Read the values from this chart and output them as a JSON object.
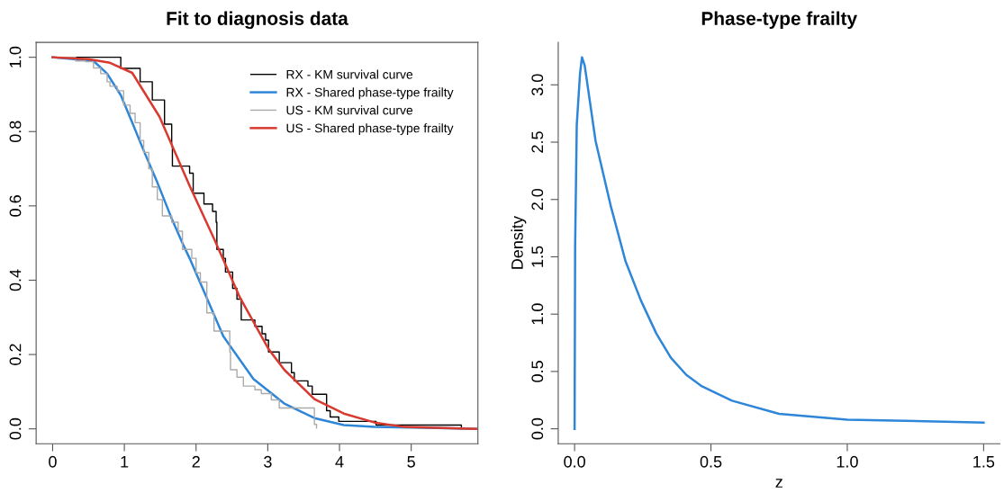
{
  "chart_data": [
    {
      "type": "line",
      "title": "Fit to diagnosis data",
      "xlim": [
        -0.23,
        5.93
      ],
      "ylim": [
        -0.04,
        1.04
      ],
      "xticks": [
        0,
        1,
        2,
        3,
        4,
        5
      ],
      "yticks": [
        {
          "value": 0,
          "label": "0.0"
        },
        {
          "value": 0.2,
          "label": "0.2"
        },
        {
          "value": 0.4,
          "label": "0.4"
        },
        {
          "value": 0.6,
          "label": "0.6"
        },
        {
          "value": 0.8,
          "label": "0.8"
        },
        {
          "value": 1,
          "label": "1.0"
        }
      ],
      "grid": false,
      "legend": "top right",
      "series": [
        {
          "name": "RX - KM survival curve",
          "type": "step",
          "color": "#000000",
          "x": [
            0,
            0.95,
            1.22,
            1.39,
            1.56,
            1.66,
            1.67,
            1.91,
            1.96,
            2.11,
            2.23,
            2.28,
            2.29,
            2.38,
            2.41,
            2.51,
            2.57,
            2.63,
            2.82,
            2.92,
            2.97,
            3.01,
            3.16,
            3.33,
            3.37,
            3.56,
            3.62,
            3.82,
            3.87,
            3.99,
            4.51,
            5.7
          ],
          "values": [
            1.0,
            0.97,
            0.934,
            0.885,
            0.82,
            0.76,
            0.707,
            0.688,
            0.634,
            0.605,
            0.585,
            0.556,
            0.483,
            0.459,
            0.422,
            0.378,
            0.349,
            0.293,
            0.276,
            0.256,
            0.239,
            0.207,
            0.178,
            0.151,
            0.129,
            0.115,
            0.093,
            0.049,
            0.032,
            0.02,
            0.01,
            0.0
          ]
        },
        {
          "name": "RX - Shared phase-type frailty",
          "type": "line",
          "color": "#2e86d8",
          "x": [
            0,
            0.57,
            0.76,
            0.95,
            1.11,
            1.28,
            1.46,
            1.66,
            1.81,
            1.91,
            2.38,
            2.8,
            3.23,
            3.65,
            4.06,
            4.49,
            5.91
          ],
          "values": [
            1.0,
            0.99,
            0.956,
            0.898,
            0.824,
            0.744,
            0.663,
            0.566,
            0.5,
            0.459,
            0.249,
            0.134,
            0.068,
            0.029,
            0.01,
            0.005,
            0.0
          ]
        },
        {
          "name": "US - KM survival curve",
          "type": "step",
          "color": "#aaaaaa",
          "x": [
            0,
            0.32,
            0.46,
            0.57,
            0.67,
            0.76,
            0.8,
            0.9,
            0.99,
            1.08,
            1.15,
            1.22,
            1.27,
            1.34,
            1.39,
            1.46,
            1.53,
            1.66,
            1.75,
            1.81,
            1.94,
            2.0,
            2.06,
            2.15,
            2.25,
            2.47,
            2.48,
            2.57,
            2.66,
            2.82,
            2.91,
            3.05,
            3.16,
            3.65,
            3.68
          ],
          "values": [
            1.0,
            0.99,
            0.988,
            0.971,
            0.956,
            0.934,
            0.922,
            0.91,
            0.871,
            0.849,
            0.824,
            0.776,
            0.744,
            0.7,
            0.651,
            0.617,
            0.573,
            0.556,
            0.532,
            0.483,
            0.459,
            0.42,
            0.395,
            0.312,
            0.263,
            0.207,
            0.159,
            0.139,
            0.115,
            0.105,
            0.095,
            0.078,
            0.056,
            0.012,
            0.002
          ]
        },
        {
          "name": "US - Shared phase-type frailty",
          "type": "line",
          "color": "#d93a2f",
          "x": [
            0,
            0.5,
            0.8,
            1.11,
            1.49,
            1.91,
            2.25,
            2.61,
            3.01,
            3.23,
            3.65,
            4.06,
            4.49,
            4.91,
            5.91
          ],
          "values": [
            1.0,
            0.995,
            0.985,
            0.958,
            0.84,
            0.654,
            0.512,
            0.354,
            0.215,
            0.159,
            0.08,
            0.041,
            0.017,
            0.005,
            0.0
          ]
        }
      ]
    },
    {
      "type": "line",
      "title": "Phase-type frailty",
      "xlabel": "z",
      "ylabel": "Density",
      "xlim": [
        -0.06,
        1.56
      ],
      "ylim": [
        -0.13,
        3.37
      ],
      "xticks": [
        {
          "value": 0,
          "label": "0.0"
        },
        0.5,
        {
          "value": 1,
          "label": "1.0"
        },
        1.5
      ],
      "yticks": [
        {
          "value": 0,
          "label": "0.0"
        },
        0.5,
        {
          "value": 1,
          "label": "1.0"
        },
        1.5,
        {
          "value": 2,
          "label": "2.0"
        },
        2.5,
        {
          "value": 3,
          "label": "3.0"
        }
      ],
      "grid": false,
      "series": [
        {
          "color": "#2e86d8",
          "x": [
            0,
            0.002,
            0.008,
            0.02,
            0.027,
            0.037,
            0.077,
            0.133,
            0.187,
            0.243,
            0.3,
            0.353,
            0.41,
            0.467,
            0.577,
            0.75,
            1.0,
            1.5
          ],
          "values": [
            0,
            1.59,
            2.65,
            3.1,
            3.24,
            3.17,
            2.51,
            1.94,
            1.46,
            1.12,
            0.83,
            0.62,
            0.47,
            0.37,
            0.245,
            0.13,
            0.08,
            0.055
          ]
        }
      ]
    }
  ]
}
